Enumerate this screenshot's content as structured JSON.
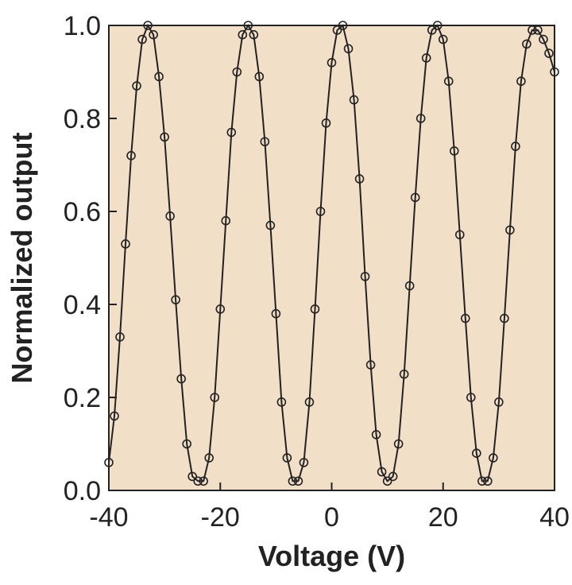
{
  "chart_data": {
    "type": "scatter",
    "title": "",
    "xlabel": "Voltage (V)",
    "ylabel": "Normalized output",
    "xlim": [
      -40,
      40
    ],
    "ylim": [
      0,
      1.0
    ],
    "x_ticks": [
      -40,
      -20,
      0,
      20,
      40
    ],
    "x_tick_labels": [
      "-40",
      "-20",
      "0",
      "20",
      "40"
    ],
    "y_ticks": [
      0,
      0.2,
      0.4,
      0.6,
      0.8,
      1.0
    ],
    "y_tick_labels": [
      "0.0",
      "0.2",
      "0.4",
      "0.6",
      "0.8",
      "1.0"
    ],
    "grid": false,
    "legend": "none",
    "colors": {
      "plot_background": "#f2dfc7",
      "marker_stroke": "#222222",
      "line": "#222222",
      "axis": "#222222"
    },
    "series": [
      {
        "marker": "open-circle",
        "connected_by_line": true,
        "x": [
          -40.0,
          -39.0,
          -38.0,
          -37.0,
          -36.0,
          -35.0,
          -34.0,
          -33.0,
          -32.0,
          -31.0,
          -30.0,
          -29.0,
          -28.0,
          -27.0,
          -26.0,
          -25.0,
          -24.0,
          -23.0,
          -22.0,
          -21.0,
          -20.0,
          -19.0,
          -18.0,
          -17.0,
          -16.0,
          -15.0,
          -14.0,
          -13.0,
          -12.0,
          -11.0,
          -10.0,
          -9.0,
          -8.0,
          -7.0,
          -6.0,
          -5.0,
          -4.0,
          -3.0,
          -2.0,
          -1.0,
          0.0,
          1.0,
          2.0,
          3.0,
          4.0,
          5.0,
          6.0,
          7.0,
          8.0,
          9.0,
          10.0,
          11.0,
          12.0,
          13.0,
          14.0,
          15.0,
          16.0,
          17.0,
          18.0,
          19.0,
          20.0,
          21.0,
          22.0,
          23.0,
          24.0,
          25.0,
          26.0,
          27.0,
          28.0,
          29.0,
          30.0,
          31.0,
          32.0,
          33.0,
          34.0,
          35.0,
          36.0,
          37.0,
          38.0,
          39.0,
          40.0
        ],
        "y": [
          0.06,
          0.16,
          0.33,
          0.53,
          0.72,
          0.87,
          0.97,
          1.0,
          0.98,
          0.89,
          0.76,
          0.59,
          0.41,
          0.24,
          0.1,
          0.03,
          0.02,
          0.02,
          0.07,
          0.2,
          0.39,
          0.58,
          0.77,
          0.9,
          0.98,
          1.0,
          0.98,
          0.89,
          0.75,
          0.57,
          0.38,
          0.19,
          0.07,
          0.02,
          0.02,
          0.06,
          0.19,
          0.39,
          0.6,
          0.79,
          0.92,
          0.99,
          1.0,
          0.95,
          0.84,
          0.67,
          0.46,
          0.27,
          0.12,
          0.04,
          0.02,
          0.03,
          0.1,
          0.25,
          0.44,
          0.63,
          0.8,
          0.93,
          0.99,
          1.0,
          0.97,
          0.88,
          0.73,
          0.55,
          0.37,
          0.2,
          0.08,
          0.02,
          0.02,
          0.07,
          0.19,
          0.37,
          0.56,
          0.74,
          0.88,
          0.96,
          0.99,
          0.99,
          0.97,
          0.94,
          0.9
        ]
      }
    ]
  }
}
